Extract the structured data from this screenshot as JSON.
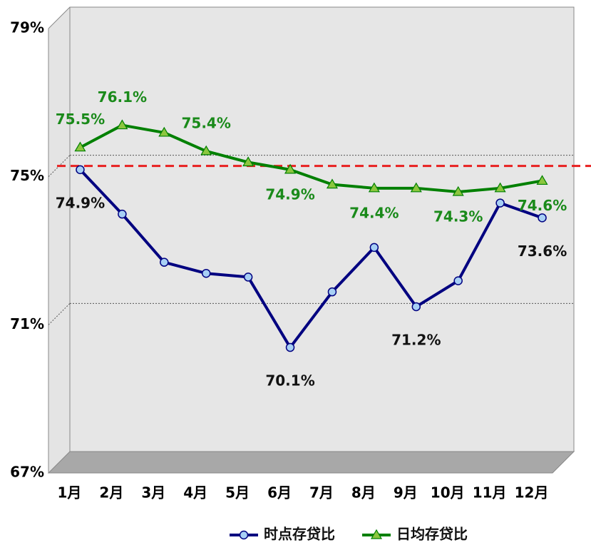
{
  "chart_data": {
    "type": "line",
    "categories": [
      "1月",
      "2月",
      "3月",
      "4月",
      "5月",
      "6月",
      "7月",
      "8月",
      "9月",
      "10月",
      "11月",
      "12月"
    ],
    "series": [
      {
        "name": "时点存贷比",
        "color": "#000080",
        "marker_color": "#a8d0f5",
        "values": [
          74.9,
          73.7,
          72.4,
          72.1,
          72.0,
          70.1,
          71.6,
          72.8,
          71.2,
          71.9,
          74.0,
          73.6
        ],
        "value_labels": [
          "74.9%",
          null,
          null,
          null,
          null,
          "70.1%",
          null,
          null,
          "71.2%",
          null,
          null,
          "73.6%"
        ],
        "label_color": "#111111"
      },
      {
        "name": "日均存贷比",
        "color": "#008000",
        "marker_color": "#8cc63f",
        "values": [
          75.5,
          76.1,
          75.9,
          75.4,
          75.1,
          74.9,
          74.5,
          74.4,
          74.4,
          74.3,
          74.4,
          74.6
        ],
        "value_labels": [
          "75.5%",
          "76.1%",
          null,
          "75.4%",
          null,
          "74.9%",
          null,
          "74.4%",
          null,
          "74.3%",
          null,
          "74.6%"
        ],
        "label_color": "#1a8a1a"
      }
    ],
    "ylim": [
      67,
      79
    ],
    "yticks": [
      {
        "value": 67,
        "label": "67%"
      },
      {
        "value": 71,
        "label": "71%"
      },
      {
        "value": 75,
        "label": "75%"
      },
      {
        "value": 79,
        "label": "79%"
      }
    ],
    "grid": true,
    "reference_line": {
      "value": 75,
      "color": "#e82020"
    },
    "legend": "bottom"
  }
}
